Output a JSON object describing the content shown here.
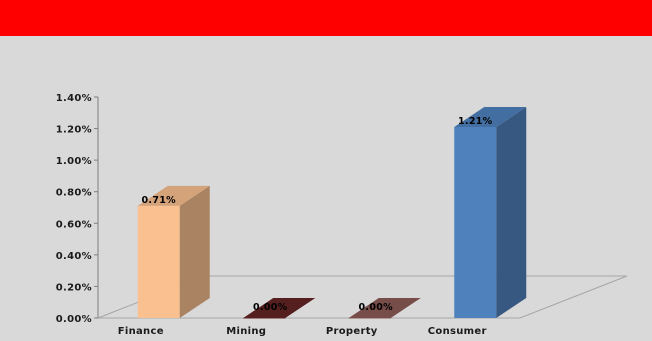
{
  "header": {
    "title": "",
    "color": "#ff0000"
  },
  "chart_data": {
    "type": "bar",
    "title": "",
    "categories": [
      "Finance",
      "Mining",
      "Property",
      "Consumer"
    ],
    "values": [
      0.71,
      0.0,
      0.0,
      1.21
    ],
    "data_labels": [
      "0.71%",
      "0.00%",
      "0.00%",
      "1.21%"
    ],
    "ylim": [
      0,
      1.4
    ],
    "yticks": [
      "0.00%",
      "0.20%",
      "0.40%",
      "0.60%",
      "0.80%",
      "1.00%",
      "1.20%",
      "1.40%"
    ],
    "xlabel": "",
    "ylabel": "",
    "grid": false,
    "style": "3d",
    "colors": [
      "#fac090",
      "#632523",
      "#8b5a56",
      "#4f81bd"
    ]
  }
}
